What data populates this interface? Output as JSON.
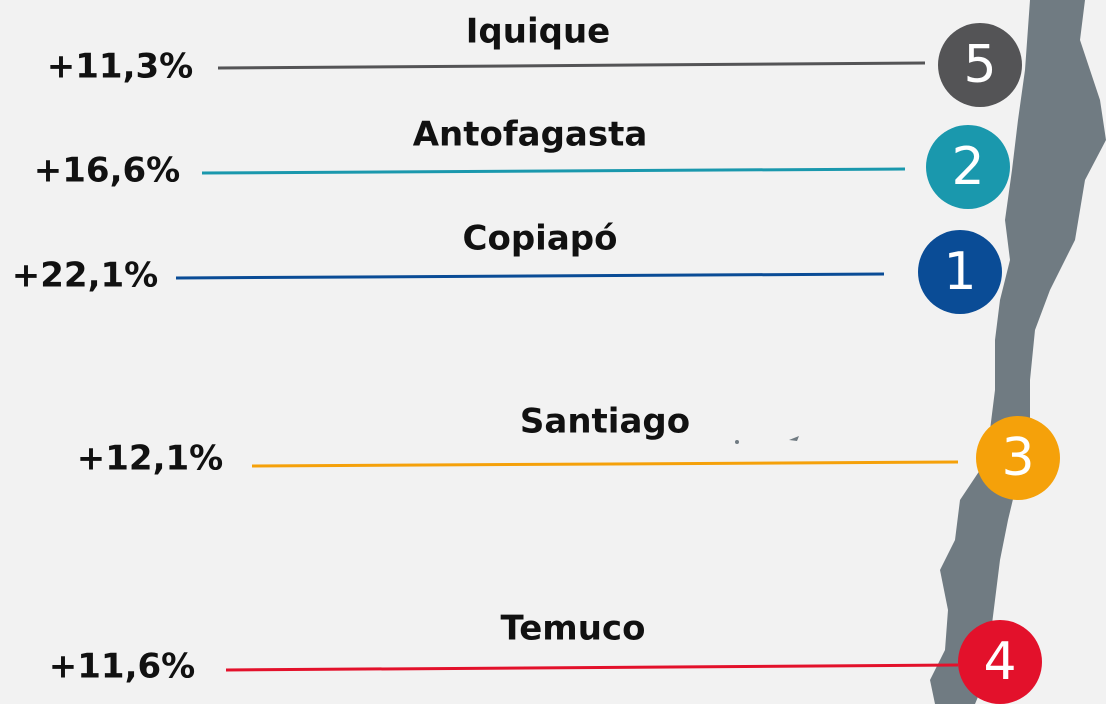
{
  "items": [
    {
      "city": "Iquique",
      "change": "+11,3%",
      "rank": "5",
      "color": "#545456"
    },
    {
      "city": "Antofagasta",
      "change": "+16,6%",
      "rank": "2",
      "color": "#1a98ad"
    },
    {
      "city": "Copiapó",
      "change": "+22,1%",
      "rank": "1",
      "color": "#0a4c96"
    },
    {
      "city": "Santiago",
      "change": "+12,1%",
      "rank": "3",
      "color": "#f5a10a"
    },
    {
      "city": "Temuco",
      "change": "+11,6%",
      "rank": "4",
      "color": "#e3112b"
    }
  ]
}
